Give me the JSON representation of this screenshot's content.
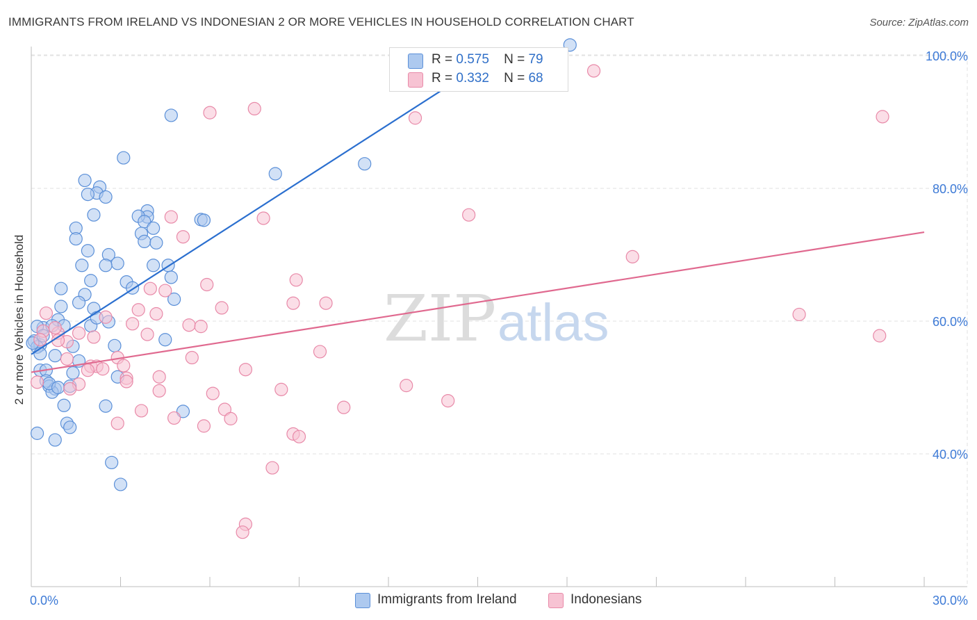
{
  "title": "IMMIGRANTS FROM IRELAND VS INDONESIAN 2 OR MORE VEHICLES IN HOUSEHOLD CORRELATION CHART",
  "source": "Source: ZipAtlas.com",
  "watermark": {
    "zip": "ZIP",
    "atlas": "atlas"
  },
  "legend": {
    "r_label": "R =",
    "n_label": "N =",
    "rows": [
      {
        "r": "0.575",
        "n": "79"
      },
      {
        "r": "0.332",
        "n": "68"
      }
    ]
  },
  "colors": {
    "ireland_fill": "#adc9ef",
    "ireland_stroke": "#5a8fd8",
    "ireland_line": "#2b6fcf",
    "indo_fill": "#f7c3d3",
    "indo_stroke": "#e889a8",
    "indo_line": "#e0698f",
    "axis_label": "#3d7ad6",
    "grid": "#e2e2e2"
  },
  "chart_data": {
    "type": "scatter",
    "title": "IMMIGRANTS FROM IRELAND VS INDONESIAN 2 OR MORE VEHICLES IN HOUSEHOLD CORRELATION CHART",
    "xlabel": "",
    "ylabel": "2 or more Vehicles in Household",
    "xlim": [
      0,
      30
    ],
    "ylim": [
      20,
      102
    ],
    "x_tick_labels": [
      "0.0%",
      "30.0%"
    ],
    "y_ticks": [
      40,
      60,
      80,
      100
    ],
    "y_tick_labels": [
      "40.0%",
      "60.0%",
      "80.0%",
      "100.0%"
    ],
    "grid": true,
    "series": [
      {
        "name": "Immigrants from Ireland",
        "R": 0.575,
        "N": 79,
        "trend": {
          "x1": 0,
          "y1": 55.0,
          "x2": 15.6,
          "y2": 100.0
        },
        "points": [
          [
            18.1,
            101.6
          ],
          [
            4.7,
            91.0
          ],
          [
            3.1,
            84.6
          ],
          [
            8.2,
            82.2
          ],
          [
            11.2,
            83.7
          ],
          [
            1.8,
            81.2
          ],
          [
            2.3,
            80.2
          ],
          [
            2.2,
            79.3
          ],
          [
            1.9,
            79.1
          ],
          [
            2.5,
            78.7
          ],
          [
            3.9,
            76.6
          ],
          [
            2.1,
            76.0
          ],
          [
            3.9,
            75.7
          ],
          [
            3.6,
            75.8
          ],
          [
            5.7,
            75.3
          ],
          [
            5.8,
            75.2
          ],
          [
            3.8,
            75.0
          ],
          [
            1.5,
            74.0
          ],
          [
            4.1,
            74.0
          ],
          [
            3.7,
            73.2
          ],
          [
            1.5,
            72.4
          ],
          [
            3.8,
            72.0
          ],
          [
            4.2,
            71.8
          ],
          [
            1.9,
            70.6
          ],
          [
            2.6,
            70.0
          ],
          [
            1.7,
            68.4
          ],
          [
            2.9,
            68.7
          ],
          [
            2.5,
            68.4
          ],
          [
            4.6,
            68.4
          ],
          [
            4.1,
            68.4
          ],
          [
            4.7,
            66.6
          ],
          [
            2.0,
            66.1
          ],
          [
            3.2,
            65.9
          ],
          [
            1.0,
            64.9
          ],
          [
            3.4,
            65.0
          ],
          [
            1.8,
            64.0
          ],
          [
            4.8,
            63.3
          ],
          [
            1.0,
            62.2
          ],
          [
            2.1,
            61.9
          ],
          [
            0.9,
            60.2
          ],
          [
            1.1,
            59.3
          ],
          [
            2.6,
            59.9
          ],
          [
            0.4,
            59.0
          ],
          [
            0.2,
            59.2
          ],
          [
            0.7,
            59.3
          ],
          [
            2.0,
            59.3
          ],
          [
            4.5,
            57.2
          ],
          [
            0.1,
            57.0
          ],
          [
            0.3,
            56.4
          ],
          [
            0.2,
            56.1
          ],
          [
            0.4,
            57.8
          ],
          [
            1.4,
            56.2
          ],
          [
            0.3,
            55.1
          ],
          [
            2.8,
            56.3
          ],
          [
            0.8,
            54.8
          ],
          [
            1.6,
            54.0
          ],
          [
            0.3,
            52.6
          ],
          [
            0.5,
            52.6
          ],
          [
            1.4,
            52.2
          ],
          [
            2.9,
            51.6
          ],
          [
            0.5,
            51.0
          ],
          [
            0.6,
            50.2
          ],
          [
            0.8,
            49.8
          ],
          [
            0.7,
            49.3
          ],
          [
            1.1,
            47.3
          ],
          [
            2.5,
            47.2
          ],
          [
            5.1,
            46.4
          ],
          [
            1.2,
            44.6
          ],
          [
            1.3,
            44.0
          ],
          [
            0.2,
            43.1
          ],
          [
            0.8,
            42.1
          ],
          [
            2.7,
            38.7
          ],
          [
            3.0,
            35.4
          ],
          [
            1.3,
            50.2
          ],
          [
            0.6,
            50.6
          ],
          [
            0.9,
            50.0
          ],
          [
            2.2,
            60.5
          ],
          [
            1.6,
            62.8
          ],
          [
            0.0,
            56.7
          ]
        ]
      },
      {
        "name": "Indonesians",
        "R": 0.332,
        "N": 68,
        "trend": {
          "x1": 0,
          "y1": 52.3,
          "x2": 30,
          "y2": 73.4
        },
        "points": [
          [
            18.9,
            97.7
          ],
          [
            7.5,
            92.0
          ],
          [
            6.0,
            91.4
          ],
          [
            12.9,
            90.6
          ],
          [
            28.6,
            90.8
          ],
          [
            14.7,
            76.0
          ],
          [
            7.8,
            75.5
          ],
          [
            4.7,
            75.7
          ],
          [
            5.1,
            72.7
          ],
          [
            20.2,
            69.7
          ],
          [
            8.9,
            66.2
          ],
          [
            5.9,
            65.5
          ],
          [
            4.0,
            64.9
          ],
          [
            4.5,
            64.6
          ],
          [
            8.8,
            62.7
          ],
          [
            9.9,
            62.7
          ],
          [
            6.4,
            62.0
          ],
          [
            25.8,
            61.0
          ],
          [
            3.6,
            61.7
          ],
          [
            4.2,
            61.1
          ],
          [
            0.5,
            61.2
          ],
          [
            2.5,
            60.6
          ],
          [
            5.3,
            59.4
          ],
          [
            5.7,
            59.2
          ],
          [
            3.4,
            59.6
          ],
          [
            0.9,
            58.2
          ],
          [
            0.4,
            58.5
          ],
          [
            1.6,
            58.2
          ],
          [
            2.1,
            57.6
          ],
          [
            3.9,
            58.0
          ],
          [
            0.3,
            57.2
          ],
          [
            1.2,
            56.9
          ],
          [
            0.9,
            57.1
          ],
          [
            28.5,
            57.8
          ],
          [
            9.7,
            55.4
          ],
          [
            5.4,
            54.5
          ],
          [
            1.2,
            54.3
          ],
          [
            2.9,
            54.5
          ],
          [
            2.0,
            53.2
          ],
          [
            2.2,
            53.2
          ],
          [
            1.9,
            52.6
          ],
          [
            2.4,
            52.8
          ],
          [
            7.2,
            52.7
          ],
          [
            4.3,
            51.6
          ],
          [
            3.2,
            51.4
          ],
          [
            3.2,
            50.9
          ],
          [
            1.6,
            50.5
          ],
          [
            1.3,
            49.8
          ],
          [
            0.2,
            50.8
          ],
          [
            12.6,
            50.3
          ],
          [
            6.1,
            49.1
          ],
          [
            8.4,
            49.7
          ],
          [
            4.3,
            49.5
          ],
          [
            14.0,
            48.0
          ],
          [
            10.5,
            47.0
          ],
          [
            6.5,
            46.7
          ],
          [
            3.7,
            46.5
          ],
          [
            4.8,
            45.4
          ],
          [
            6.7,
            45.3
          ],
          [
            2.9,
            44.6
          ],
          [
            5.8,
            44.2
          ],
          [
            8.8,
            43.0
          ],
          [
            9.0,
            42.6
          ],
          [
            8.1,
            37.9
          ],
          [
            7.2,
            29.4
          ],
          [
            7.1,
            28.2
          ],
          [
            3.1,
            53.3
          ],
          [
            0.8,
            59.0
          ]
        ]
      }
    ]
  },
  "bottom_legend": [
    "Immigrants from Ireland",
    "Indonesians"
  ]
}
